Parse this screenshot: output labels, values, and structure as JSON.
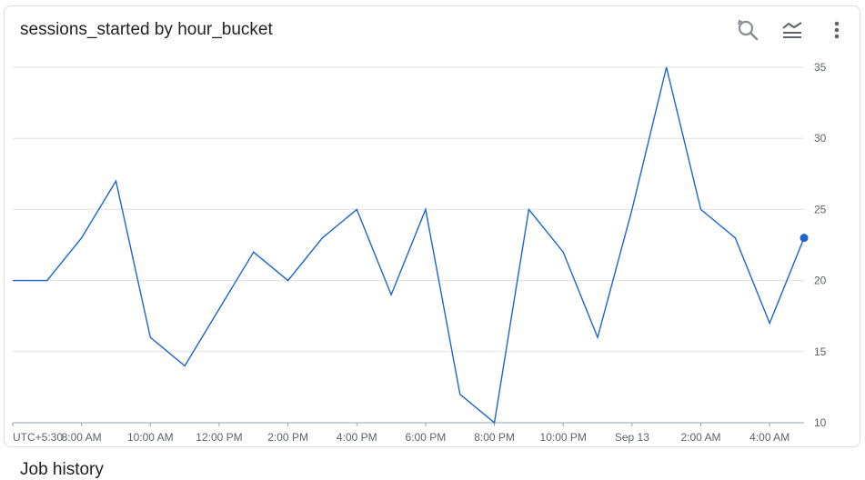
{
  "card": {
    "title": "sessions_started by hour_bucket",
    "toolbar": [
      {
        "name": "zoom-reset-button",
        "icon": "zoom-reset-icon"
      },
      {
        "name": "legend-button",
        "icon": "legend-lines-icon"
      },
      {
        "name": "more-options-button",
        "icon": "more-vert-icon"
      }
    ]
  },
  "section": {
    "title": "Job history"
  },
  "chart_data": {
    "type": "line",
    "title": "sessions_started by hour_bucket",
    "xlabel": "",
    "ylabel": "",
    "ylim": [
      10,
      35
    ],
    "yticks": [
      35,
      30,
      25,
      20,
      15,
      10
    ],
    "y_axis_side": "right",
    "grid": true,
    "xticks": [
      {
        "label": "UTC+5:30",
        "hour": 6
      },
      {
        "label": "8:00 AM",
        "hour": 8
      },
      {
        "label": "10:00 AM",
        "hour": 10
      },
      {
        "label": "12:00 PM",
        "hour": 12
      },
      {
        "label": "2:00 PM",
        "hour": 14
      },
      {
        "label": "4:00 PM",
        "hour": 16
      },
      {
        "label": "6:00 PM",
        "hour": 18
      },
      {
        "label": "8:00 PM",
        "hour": 20
      },
      {
        "label": "10:00 PM",
        "hour": 22
      },
      {
        "label": "Sep 13",
        "hour": 24
      },
      {
        "label": "2:00 AM",
        "hour": 26
      },
      {
        "label": "4:00 AM",
        "hour": 28
      }
    ],
    "series": [
      {
        "color": "#1a66d2",
        "x": [
          6,
          7,
          8,
          9,
          10,
          11,
          12,
          13,
          14,
          15,
          16,
          17,
          18,
          19,
          20,
          21,
          22,
          23,
          24,
          25,
          26,
          27,
          28,
          29
        ],
        "values": [
          20,
          20,
          23,
          27,
          16,
          14,
          18,
          22,
          20,
          23,
          25,
          19,
          25,
          12,
          10,
          25,
          22,
          16,
          25,
          35,
          25,
          23,
          17,
          23
        ],
        "highlight_last_point": true
      }
    ]
  }
}
